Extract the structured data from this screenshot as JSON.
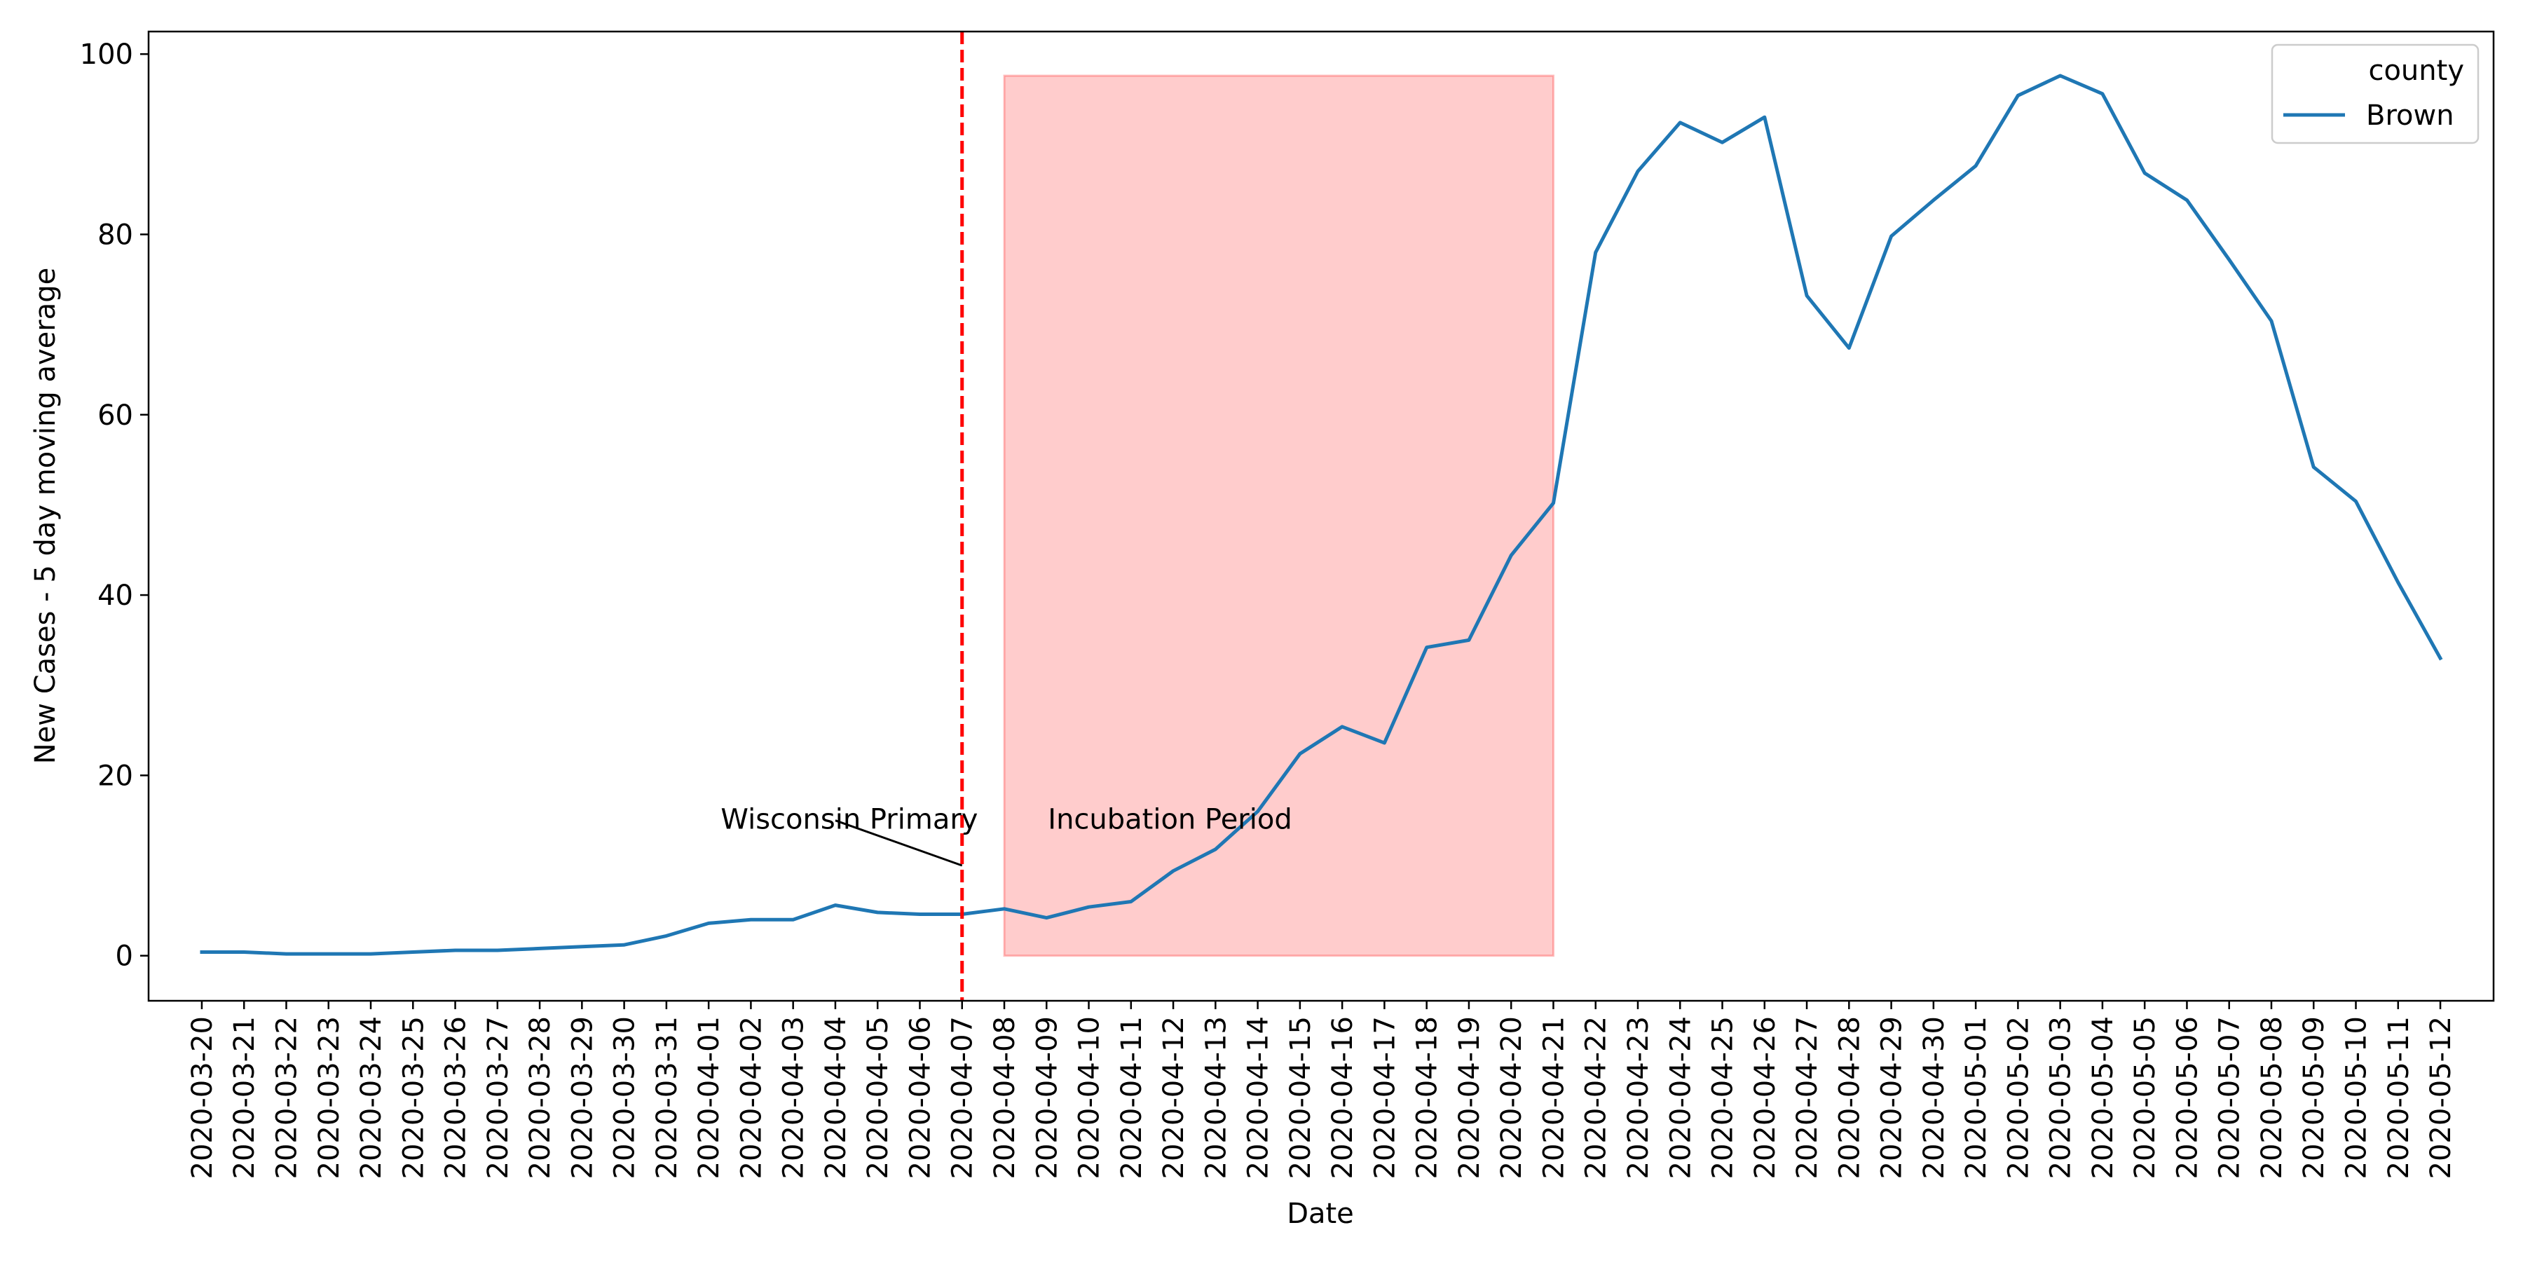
{
  "chart_data": {
    "type": "line",
    "xlabel": "Date",
    "ylabel": "New Cases - 5 day moving average",
    "ylim": [
      -5,
      102.5
    ],
    "yticks": [
      0,
      20,
      40,
      60,
      80,
      100
    ],
    "grid": false,
    "legend": {
      "title": "county",
      "placement": "top-right",
      "entries": [
        "Brown"
      ]
    },
    "x": [
      "2020-03-20",
      "2020-03-21",
      "2020-03-22",
      "2020-03-23",
      "2020-03-24",
      "2020-03-25",
      "2020-03-26",
      "2020-03-27",
      "2020-03-28",
      "2020-03-29",
      "2020-03-30",
      "2020-03-31",
      "2020-04-01",
      "2020-04-02",
      "2020-04-03",
      "2020-04-04",
      "2020-04-05",
      "2020-04-06",
      "2020-04-07",
      "2020-04-08",
      "2020-04-09",
      "2020-04-10",
      "2020-04-11",
      "2020-04-12",
      "2020-04-13",
      "2020-04-14",
      "2020-04-15",
      "2020-04-16",
      "2020-04-17",
      "2020-04-18",
      "2020-04-19",
      "2020-04-20",
      "2020-04-21",
      "2020-04-22",
      "2020-04-23",
      "2020-04-24",
      "2020-04-25",
      "2020-04-26",
      "2020-04-27",
      "2020-04-28",
      "2020-04-29",
      "2020-04-30",
      "2020-05-01",
      "2020-05-02",
      "2020-05-03",
      "2020-05-04",
      "2020-05-05",
      "2020-05-06",
      "2020-05-07",
      "2020-05-08",
      "2020-05-09",
      "2020-05-10",
      "2020-05-11",
      "2020-05-12"
    ],
    "series": [
      {
        "name": "Brown",
        "color": "#1f77b4",
        "values": [
          0.4,
          0.4,
          0.2,
          0.2,
          0.2,
          0.4,
          0.6,
          0.6,
          0.8,
          1.0,
          1.2,
          2.2,
          3.6,
          4.0,
          4.0,
          5.6,
          4.8,
          4.6,
          4.6,
          5.2,
          4.2,
          5.4,
          6.0,
          9.4,
          11.8,
          16.0,
          22.4,
          25.4,
          23.6,
          34.2,
          35.0,
          44.4,
          50.2,
          78.0,
          87.0,
          92.4,
          90.2,
          93.0,
          73.2,
          67.4,
          79.8,
          83.8,
          87.6,
          95.4,
          97.6,
          95.6,
          86.8,
          83.8,
          77.2,
          70.4,
          54.2,
          50.4,
          41.4,
          33.0
        ]
      }
    ],
    "annotations": {
      "vline": {
        "x": "2020-04-07",
        "color": "#ff0000",
        "style": "dashed"
      },
      "vline_label": {
        "text": "Wisconsin Primary",
        "pointer_from": [
          "2020-04-04",
          15
        ],
        "pointer_to": [
          "2020-04-07",
          10
        ]
      },
      "span": {
        "x_start": "2020-04-08",
        "x_end": "2020-04-21",
        "y_start": 0,
        "y_end": 97.6,
        "color": "#ff0000",
        "opacity": 0.2
      },
      "span_label": {
        "text": "Incubation Period"
      }
    }
  }
}
